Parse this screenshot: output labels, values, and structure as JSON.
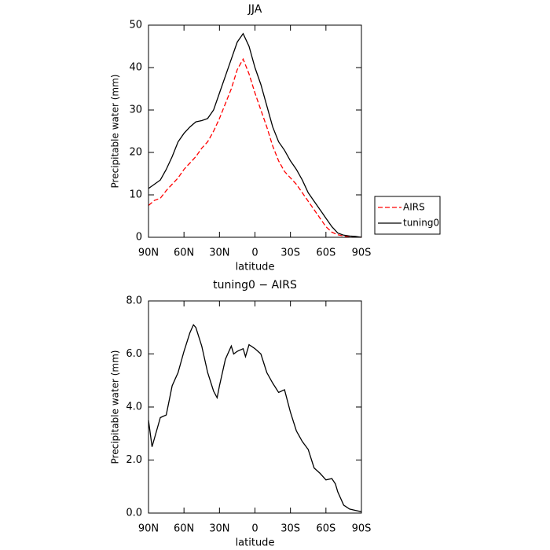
{
  "chart_data": [
    {
      "type": "line",
      "title": "JJA",
      "xlabel": "latitude",
      "ylabel": "Precipitable water (mm)",
      "x": [
        90,
        85,
        80,
        75,
        70,
        65,
        60,
        55,
        50,
        45,
        40,
        35,
        30,
        25,
        20,
        15,
        10,
        5,
        0,
        -5,
        -10,
        -15,
        -20,
        -25,
        -30,
        -35,
        -40,
        -45,
        -50,
        -55,
        -60,
        -65,
        -70,
        -75,
        -80,
        -85,
        -90
      ],
      "series": [
        {
          "name": "AIRS",
          "color": "#ff0000",
          "linestyle": "dashed",
          "values": [
            7.5,
            8.7,
            9.2,
            11,
            12.5,
            14,
            16,
            17.5,
            19,
            21,
            22.5,
            25,
            28,
            31.5,
            35,
            39.5,
            42,
            38.5,
            34,
            30,
            26,
            21.5,
            18,
            15.5,
            14,
            12.5,
            10.5,
            8.5,
            6.5,
            4.5,
            2.5,
            1.2,
            0.6,
            0.3,
            0.1,
            0.1,
            0
          ]
        },
        {
          "name": "tuning0",
          "color": "#000000",
          "linestyle": "solid",
          "values": [
            11.5,
            12.5,
            13.5,
            16,
            19,
            22.5,
            24.5,
            26,
            27.2,
            27.5,
            28,
            30,
            34,
            38,
            42,
            46,
            48,
            45,
            40,
            36,
            31,
            26,
            22.5,
            20.5,
            18,
            16,
            13.5,
            10.5,
            8.5,
            6.5,
            4.5,
            2.5,
            1,
            0.5,
            0.3,
            0.2,
            0
          ]
        }
      ],
      "xlim": [
        90,
        -90
      ],
      "xticks": [
        {
          "value": 90,
          "label": "90N"
        },
        {
          "value": 60,
          "label": "60N"
        },
        {
          "value": 30,
          "label": "30N"
        },
        0,
        {
          "value": -30,
          "label": "30S"
        },
        {
          "value": -60,
          "label": "60S"
        },
        {
          "value": -90,
          "label": "90S"
        }
      ],
      "ylim": [
        0,
        50
      ],
      "yticks": [
        0,
        10,
        20,
        30,
        40,
        50
      ],
      "legend": "outside-right"
    },
    {
      "type": "line",
      "title": "tuning0 − AIRS",
      "xlabel": "latitude",
      "ylabel": "Precipitable water (mm)",
      "x": [
        90,
        87,
        80,
        75,
        70,
        65,
        60,
        55,
        52,
        50,
        45,
        40,
        35,
        32,
        30,
        25,
        20,
        18,
        15,
        10,
        8,
        5,
        0,
        -5,
        -10,
        -15,
        -20,
        -25,
        -30,
        -35,
        -40,
        -45,
        -50,
        -55,
        -60,
        -65,
        -68,
        -70,
        -75,
        -80,
        -85,
        -90
      ],
      "series": [
        {
          "color": "#000000",
          "linestyle": "solid",
          "values": [
            3.5,
            2.5,
            3.6,
            3.7,
            4.8,
            5.3,
            6.1,
            6.8,
            7.1,
            7.0,
            6.3,
            5.3,
            4.6,
            4.35,
            4.8,
            5.8,
            6.3,
            6.0,
            6.1,
            6.2,
            5.9,
            6.35,
            6.2,
            6.0,
            5.3,
            4.9,
            4.55,
            4.65,
            3.8,
            3.1,
            2.7,
            2.4,
            1.7,
            1.5,
            1.25,
            1.3,
            1.1,
            0.8,
            0.3,
            0.15,
            0.1,
            0.05
          ]
        }
      ],
      "xlim": [
        90,
        -90
      ],
      "xticks": [
        {
          "value": 90,
          "label": "90N"
        },
        {
          "value": 60,
          "label": "60N"
        },
        {
          "value": 30,
          "label": "30N"
        },
        0,
        {
          "value": -30,
          "label": "30S"
        },
        {
          "value": -60,
          "label": "60S"
        },
        {
          "value": -90,
          "label": "90S"
        }
      ],
      "ylim": [
        0,
        8
      ],
      "yticks": [
        {
          "value": 0,
          "label": "0.0"
        },
        {
          "value": 2,
          "label": "2.0"
        },
        {
          "value": 4,
          "label": "4.0"
        },
        {
          "value": 6,
          "label": "6.0"
        },
        {
          "value": 8,
          "label": "8.0"
        }
      ]
    }
  ]
}
